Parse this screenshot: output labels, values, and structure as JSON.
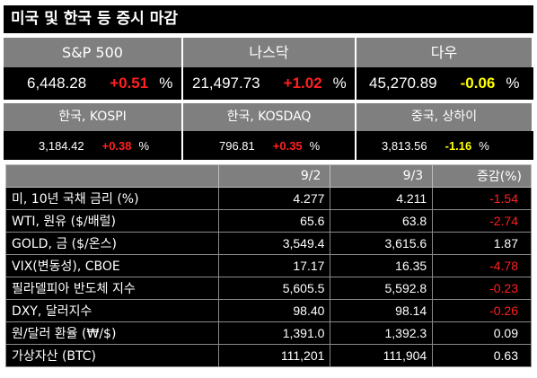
{
  "title": "미국 및 한국 등 증시 마감",
  "indices_top": [
    {
      "name": "S&P 500",
      "price": "6,448.28",
      "change": "+0.51",
      "pct": "%",
      "dir": "up"
    },
    {
      "name": "나스닥",
      "price": "21,497.73",
      "change": "+1.02",
      "pct": "%",
      "dir": "up"
    },
    {
      "name": "다우",
      "price": "45,270.89",
      "change": "-0.06",
      "pct": "%",
      "dir": "down"
    }
  ],
  "indices_bottom": [
    {
      "name": "한국, KOSPI",
      "price": "3,184.42",
      "change": "+0.38",
      "pct": "%",
      "dir": "up"
    },
    {
      "name": "한국, KOSDAQ",
      "price": "796.81",
      "change": "+0.35",
      "pct": "%",
      "dir": "up"
    },
    {
      "name": "중국, 상하이",
      "price": "3,813.56",
      "change": "-1.16",
      "pct": "%",
      "dir": "down"
    }
  ],
  "table": {
    "headers": [
      "",
      "9/2",
      "9/3",
      "증감(%)"
    ],
    "rows": [
      {
        "label": "미, 10년 국채 금리 (%)",
        "d1": "4.277",
        "d2": "4.211",
        "chg": "-1.54",
        "neg": true
      },
      {
        "label": "WTI, 원유 ($/배럴)",
        "d1": "65.6",
        "d2": "63.8",
        "chg": "-2.74",
        "neg": true
      },
      {
        "label": "GOLD, 금 ($/온스)",
        "d1": "3,549.4",
        "d2": "3,615.6",
        "chg": "1.87",
        "neg": false
      },
      {
        "label": "VIX(변동성), CBOE",
        "d1": "17.17",
        "d2": "16.35",
        "chg": "-4.78",
        "neg": true
      },
      {
        "label": "필라델피아 반도체 지수",
        "d1": "5,605.5",
        "d2": "5,592.8",
        "chg": "-0.23",
        "neg": true
      },
      {
        "label": "DXY, 달러지수",
        "d1": "98.40",
        "d2": "98.14",
        "chg": "-0.26",
        "neg": true
      },
      {
        "label": "원/달러 환율 (₩/$)",
        "d1": "1,391.0",
        "d2": "1,392.3",
        "chg": "0.09",
        "neg": false
      },
      {
        "label": "가상자산 (BTC)",
        "d1": "111,201",
        "d2": "111,904",
        "chg": "0.63",
        "neg": false
      }
    ]
  },
  "colors": {
    "up": "#ff2020",
    "down": "#ffff00",
    "header_bg": "#7f7f7f",
    "cell_bg": "#000000"
  }
}
